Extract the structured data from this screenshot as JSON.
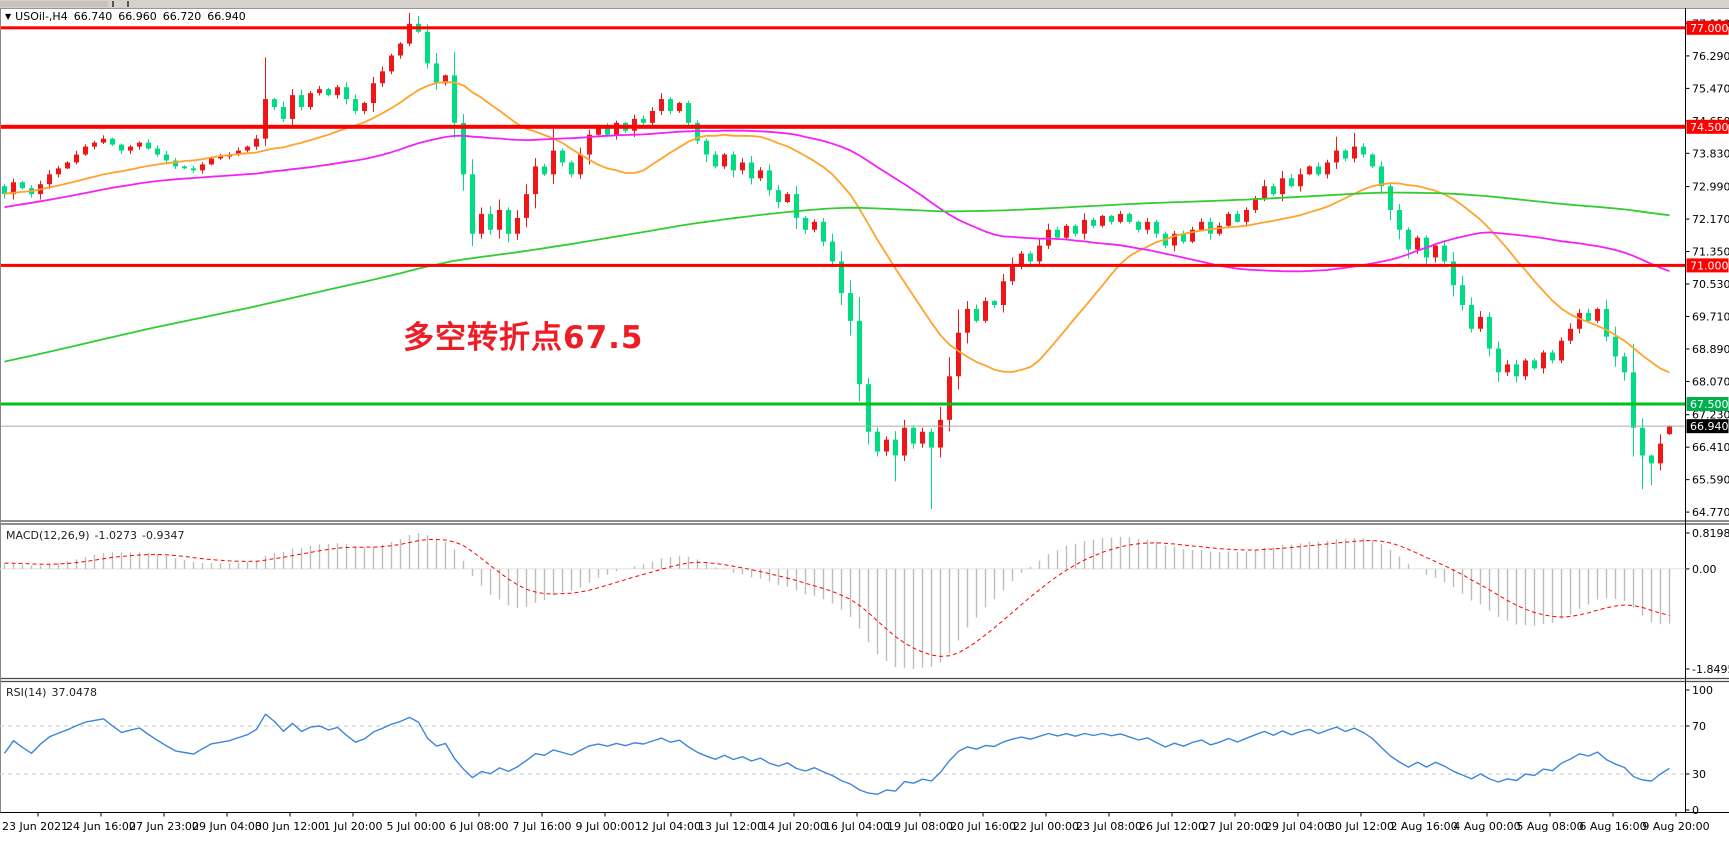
{
  "header": {
    "symbol_period": "USOil-,H4",
    "open": "66.740",
    "high": "66.960",
    "low": "66.720",
    "close": "66.940"
  },
  "annotation": {
    "text": "多空转折点67.5",
    "color": "#ee1c25"
  },
  "main_chart": {
    "price_ticks": [
      "77.110",
      "76.290",
      "75.470",
      "74.650",
      "73.830",
      "72.990",
      "72.170",
      "71.350",
      "70.530",
      "69.710",
      "68.890",
      "68.070",
      "67.230",
      "66.410",
      "65.590",
      "64.770"
    ],
    "levels": [
      {
        "price": 77.0,
        "label": "77.000",
        "color": "#ff0000",
        "thickness": 3,
        "name": "resistance-77"
      },
      {
        "price": 74.5,
        "label": "74.500",
        "color": "#ff0000",
        "thickness": 4,
        "name": "resistance-74_5"
      },
      {
        "price": 71.0,
        "label": "71.000",
        "color": "#ff0000",
        "thickness": 3,
        "name": "level-71"
      },
      {
        "price": 67.5,
        "label": "67.500",
        "color": "#00b050",
        "line_color": "#00c020",
        "thickness": 3,
        "name": "support-67_5"
      }
    ],
    "current_price": {
      "value": 66.94,
      "label": "66.940",
      "badge_bg": "#000000",
      "line_color": "#aaaaaa"
    },
    "colors": {
      "candle_up": "#ee1616",
      "candle_down": "#00dc82"
    }
  },
  "macd": {
    "label": "MACD(12,26,9)",
    "value_main": "-1.0273",
    "value_signal": "-0.9347",
    "ticks": [
      "0.8198",
      "0.00",
      "-1.8495"
    ],
    "histogram_color": "#bdbdbd",
    "signal_color": "#ff0000"
  },
  "rsi": {
    "label": "RSI(14)",
    "value": "37.0478",
    "ticks": [
      "100",
      "70",
      "30",
      "0"
    ],
    "tick_values": [
      100,
      70,
      30,
      0
    ],
    "guide_levels": [
      70,
      30
    ],
    "line_color": "#3d85dd"
  },
  "time_axis": [
    "23 Jun 2021",
    "24 Jun 16:00",
    "27 Jun 23:00",
    "29 Jun 04:00",
    "30 Jun 12:00",
    "1 Jul 20:00",
    "5 Jul 00:00",
    "6 Jul 08:00",
    "7 Jul 16:00",
    "9 Jul 00:00",
    "12 Jul 04:00",
    "13 Jul 12:00",
    "14 Jul 20:00",
    "16 Jul 04:00",
    "19 Jul 08:00",
    "20 Jul 16:00",
    "22 Jul 00:00",
    "23 Jul 08:00",
    "26 Jul 12:00",
    "27 Jul 20:00",
    "29 Jul 04:00",
    "30 Jul 12:00",
    "2 Aug 16:00",
    "4 Aug 00:00",
    "5 Aug 08:00",
    "6 Aug 16:00",
    "9 Aug 20:00"
  ],
  "chart_data": {
    "type": "candlestick",
    "instrument": "USOil",
    "timeframe": "H4",
    "title": "USOil-,H4 66.740 66.960 66.720 66.940",
    "price_axis_range": [
      64.77,
      77.11
    ],
    "horizontal_levels": [
      77.0,
      74.5,
      71.0,
      67.5
    ],
    "current_price": 66.94,
    "last_candle": {
      "o": 66.74,
      "h": 66.96,
      "l": 66.72,
      "c": 66.94
    },
    "visible_candles": 186,
    "prehistory_waypoints": [
      [
        -200,
        62.8
      ],
      [
        -160,
        65.2
      ],
      [
        -120,
        67.6
      ],
      [
        -80,
        69.6
      ],
      [
        -56,
        70.8
      ],
      [
        -36,
        72.8
      ],
      [
        -26,
        73.7
      ],
      [
        -16,
        72.2
      ],
      [
        -8,
        73.2
      ],
      [
        -1,
        73.0
      ]
    ],
    "close_waypoints": [
      [
        0,
        72.8
      ],
      [
        1,
        73.1
      ],
      [
        3,
        72.8
      ],
      [
        5,
        73.3
      ],
      [
        7,
        73.6
      ],
      [
        9,
        74.0
      ],
      [
        11,
        74.2
      ],
      [
        13,
        73.9
      ],
      [
        15,
        74.1
      ],
      [
        17,
        73.8
      ],
      [
        19,
        73.5
      ],
      [
        21,
        73.4
      ],
      [
        23,
        73.7
      ],
      [
        25,
        73.8
      ],
      [
        27,
        74.0
      ],
      [
        28,
        74.2
      ],
      [
        29,
        75.2
      ],
      [
        30,
        75.0
      ],
      [
        31,
        74.7
      ],
      [
        32,
        75.3
      ],
      [
        33,
        75.0
      ],
      [
        34,
        75.35
      ],
      [
        35,
        75.45
      ],
      [
        36,
        75.3
      ],
      [
        37,
        75.5
      ],
      [
        38,
        75.2
      ],
      [
        39,
        74.9
      ],
      [
        40,
        75.1
      ],
      [
        41,
        75.6
      ],
      [
        42,
        75.9
      ],
      [
        43,
        76.3
      ],
      [
        44,
        76.6
      ],
      [
        45,
        77.1
      ],
      [
        46,
        76.9
      ],
      [
        47,
        76.1
      ],
      [
        48,
        75.6
      ],
      [
        49,
        75.8
      ],
      [
        50,
        74.6
      ],
      [
        51,
        73.3
      ],
      [
        52,
        71.8
      ],
      [
        53,
        72.3
      ],
      [
        54,
        71.9
      ],
      [
        55,
        72.4
      ],
      [
        56,
        71.8
      ],
      [
        57,
        72.2
      ],
      [
        58,
        72.8
      ],
      [
        59,
        73.5
      ],
      [
        60,
        73.3
      ],
      [
        61,
        73.9
      ],
      [
        62,
        73.6
      ],
      [
        63,
        73.3
      ],
      [
        64,
        73.8
      ],
      [
        65,
        74.3
      ],
      [
        66,
        74.5
      ],
      [
        67,
        74.3
      ],
      [
        68,
        74.6
      ],
      [
        69,
        74.4
      ],
      [
        70,
        74.7
      ],
      [
        71,
        74.6
      ],
      [
        72,
        74.9
      ],
      [
        73,
        75.2
      ],
      [
        74,
        74.9
      ],
      [
        75,
        75.1
      ],
      [
        76,
        74.6
      ],
      [
        77,
        74.15
      ],
      [
        78,
        73.8
      ],
      [
        79,
        73.5
      ],
      [
        80,
        73.8
      ],
      [
        81,
        73.4
      ],
      [
        82,
        73.6
      ],
      [
        83,
        73.2
      ],
      [
        84,
        73.4
      ],
      [
        85,
        72.9
      ],
      [
        86,
        72.6
      ],
      [
        87,
        72.8
      ],
      [
        88,
        72.2
      ],
      [
        89,
        71.9
      ],
      [
        90,
        72.1
      ],
      [
        91,
        71.6
      ],
      [
        92,
        71.1
      ],
      [
        93,
        70.3
      ],
      [
        94,
        69.6
      ],
      [
        95,
        68.0
      ],
      [
        96,
        66.8
      ],
      [
        97,
        66.3
      ],
      [
        98,
        66.6
      ],
      [
        99,
        66.2
      ],
      [
        100,
        66.9
      ],
      [
        101,
        66.5
      ],
      [
        102,
        66.8
      ],
      [
        103,
        66.4
      ],
      [
        104,
        67.1
      ],
      [
        105,
        68.2
      ],
      [
        106,
        69.3
      ],
      [
        107,
        69.9
      ],
      [
        108,
        69.6
      ],
      [
        109,
        70.1
      ],
      [
        110,
        70.0
      ],
      [
        111,
        70.6
      ],
      [
        112,
        71.0
      ],
      [
        113,
        71.3
      ],
      [
        114,
        71.1
      ],
      [
        115,
        71.5
      ],
      [
        116,
        71.9
      ],
      [
        117,
        71.7
      ],
      [
        118,
        72.0
      ],
      [
        119,
        71.8
      ],
      [
        120,
        72.15
      ],
      [
        121,
        72.0
      ],
      [
        122,
        72.25
      ],
      [
        123,
        72.1
      ],
      [
        124,
        72.3
      ],
      [
        125,
        72.1
      ],
      [
        126,
        71.9
      ],
      [
        127,
        72.1
      ],
      [
        128,
        71.8
      ],
      [
        129,
        71.5
      ],
      [
        130,
        71.8
      ],
      [
        131,
        71.6
      ],
      [
        132,
        71.9
      ],
      [
        133,
        72.1
      ],
      [
        134,
        71.8
      ],
      [
        135,
        72.0
      ],
      [
        136,
        72.3
      ],
      [
        137,
        72.1
      ],
      [
        138,
        72.4
      ],
      [
        139,
        72.7
      ],
      [
        140,
        73.0
      ],
      [
        141,
        72.8
      ],
      [
        142,
        73.2
      ],
      [
        143,
        73.0
      ],
      [
        144,
        73.3
      ],
      [
        145,
        73.5
      ],
      [
        146,
        73.3
      ],
      [
        147,
        73.6
      ],
      [
        148,
        73.9
      ],
      [
        149,
        73.7
      ],
      [
        150,
        74.0
      ],
      [
        151,
        73.8
      ],
      [
        152,
        73.5
      ],
      [
        153,
        73.0
      ],
      [
        154,
        72.4
      ],
      [
        155,
        71.9
      ],
      [
        156,
        71.4
      ],
      [
        157,
        71.7
      ],
      [
        158,
        71.2
      ],
      [
        159,
        71.5
      ],
      [
        160,
        71.1
      ],
      [
        161,
        70.5
      ],
      [
        162,
        70.0
      ],
      [
        163,
        69.4
      ],
      [
        164,
        69.7
      ],
      [
        165,
        68.9
      ],
      [
        166,
        68.3
      ],
      [
        167,
        68.5
      ],
      [
        168,
        68.2
      ],
      [
        169,
        68.6
      ],
      [
        170,
        68.4
      ],
      [
        171,
        68.8
      ],
      [
        172,
        68.6
      ],
      [
        173,
        69.1
      ],
      [
        174,
        69.4
      ],
      [
        175,
        69.8
      ],
      [
        176,
        69.6
      ],
      [
        177,
        69.9
      ],
      [
        178,
        69.2
      ],
      [
        179,
        68.7
      ],
      [
        180,
        68.3
      ],
      [
        181,
        66.9
      ],
      [
        182,
        66.2
      ],
      [
        183,
        66.0
      ],
      [
        184,
        66.5
      ],
      [
        185,
        66.94
      ]
    ],
    "wick_overrides": {
      "29": {
        "h": 76.25
      },
      "45": {
        "h": 77.38
      },
      "46": {
        "h": 77.3
      },
      "61": {
        "h": 74.45
      },
      "99": {
        "l": 65.55
      },
      "103": {
        "l": 64.85
      },
      "148": {
        "h": 74.25
      },
      "150": {
        "h": 74.35
      },
      "182": {
        "l": 65.35
      },
      "183": {
        "l": 65.45
      }
    },
    "indicators": {
      "moving_averages": [
        {
          "period": 20,
          "color": "#ffa32e"
        },
        {
          "period": 60,
          "color": "#f522f5"
        },
        {
          "period": 200,
          "color": "#33cc33"
        }
      ],
      "macd": {
        "fast": 12,
        "slow": 26,
        "signal": 9,
        "value_main": -1.0273,
        "value_signal": -0.9347,
        "scale_max": 0.8198,
        "scale_min": -1.8495
      },
      "rsi": {
        "period": 14,
        "value": 37.0478,
        "range": [
          0,
          100
        ],
        "guides": [
          70,
          30
        ]
      }
    }
  }
}
